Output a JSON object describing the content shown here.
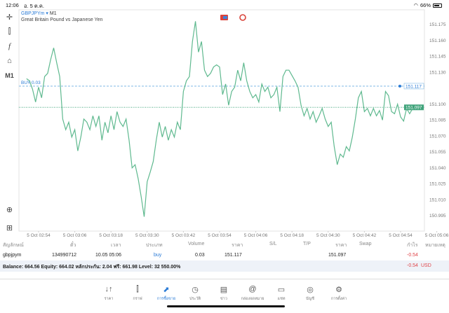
{
  "status": {
    "time": "12:06",
    "date": "อ. 5 ต.ค.",
    "battery": "66%",
    "wifi_icon": "wifi-icon",
    "battery_icon": "battery-icon"
  },
  "toolbar": {
    "timeframe": "M1",
    "icons": [
      "crosshair-icon",
      "candlestick-icon",
      "function-icon",
      "objects-icon"
    ]
  },
  "header": {
    "symbol": "GBPJPYm",
    "timeframe": "M1",
    "description": "Great Britain Pound vs Japanese Yen",
    "separator": "▾"
  },
  "chart_data": {
    "type": "line",
    "ylim": [
      150.985,
      151.19
    ],
    "yticks": [
      "151.175",
      "151.160",
      "151.145",
      "151.130",
      "151.100",
      "151.085",
      "151.070",
      "151.055",
      "151.040",
      "151.025",
      "151.010",
      "150.995"
    ],
    "xticks": [
      "5 Oct 02:54",
      "5 Oct 03:06",
      "5 Oct 03:18",
      "5 Oct 03:30",
      "5 Oct 03:42",
      "5 Oct 03:54",
      "5 Oct 04:06",
      "5 Oct 04:18",
      "5 Oct 04:30",
      "5 Oct 04:42",
      "5 Oct 04:54",
      "5 Oct 05:06"
    ],
    "line_color": "#5fb98f",
    "buy_line": {
      "label": "BUY 0.03",
      "price": "151.117",
      "color": "#7fb8e6"
    },
    "bid_line": {
      "price": "151.097",
      "color": "#3fa37a"
    },
    "x": [
      "02:50",
      "02:51",
      "02:52",
      "02:53",
      "02:54",
      "02:55",
      "02:56",
      "02:57",
      "02:58",
      "02:59",
      "03:00",
      "03:01",
      "03:02",
      "03:03",
      "03:04",
      "03:05",
      "03:06",
      "03:07",
      "03:08",
      "03:09",
      "03:10",
      "03:11",
      "03:12",
      "03:13",
      "03:14",
      "03:15",
      "03:16",
      "03:17",
      "03:18",
      "03:19",
      "03:20",
      "03:21",
      "03:22",
      "03:23",
      "03:24",
      "03:25",
      "03:26",
      "03:27",
      "03:28",
      "03:29",
      "03:30",
      "03:31",
      "03:32",
      "03:33",
      "03:34",
      "03:35",
      "03:36",
      "03:37",
      "03:38",
      "03:39",
      "03:40",
      "03:41",
      "03:42",
      "03:43",
      "03:44",
      "03:45",
      "03:46",
      "03:47",
      "03:48",
      "03:49",
      "03:50",
      "03:51",
      "03:52",
      "03:53",
      "03:54",
      "03:55",
      "03:56",
      "03:57",
      "03:58",
      "03:59",
      "04:00",
      "04:01",
      "04:02",
      "04:03",
      "04:04",
      "04:05",
      "04:06",
      "04:07",
      "04:08",
      "04:09",
      "04:10",
      "04:11",
      "04:12",
      "04:13",
      "04:14",
      "04:15",
      "04:16",
      "04:17",
      "04:18",
      "04:19",
      "04:20",
      "04:21",
      "04:22",
      "04:23",
      "04:24",
      "04:25",
      "04:26",
      "04:27",
      "04:28",
      "04:29",
      "04:30",
      "04:31",
      "04:32",
      "04:33",
      "04:34",
      "04:35",
      "04:36",
      "04:37",
      "04:38",
      "04:39",
      "04:40",
      "04:41",
      "04:42",
      "04:43",
      "04:44",
      "04:45",
      "04:46",
      "04:47",
      "04:48",
      "04:49",
      "04:50",
      "04:51",
      "04:52",
      "04:53",
      "04:54",
      "04:55",
      "04:56",
      "04:57",
      "04:58",
      "04:59"
    ],
    "y": [
      151.124,
      151.122,
      151.114,
      151.102,
      151.116,
      151.106,
      151.126,
      151.129,
      151.142,
      151.153,
      151.139,
      151.126,
      151.086,
      151.076,
      151.083,
      151.069,
      151.076,
      151.056,
      151.069,
      151.086,
      151.083,
      151.076,
      151.089,
      151.079,
      151.089,
      151.066,
      151.083,
      151.073,
      151.089,
      151.076,
      151.093,
      151.083,
      151.079,
      151.086,
      151.066,
      151.04,
      151.043,
      151.03,
      151.013,
      150.994,
      151.027,
      151.036,
      151.046,
      151.066,
      151.083,
      151.069,
      151.079,
      151.066,
      151.076,
      151.069,
      151.083,
      151.076,
      151.112,
      151.122,
      151.126,
      151.159,
      151.178,
      151.149,
      151.159,
      151.132,
      151.126,
      151.129,
      151.135,
      151.137,
      151.135,
      151.109,
      151.119,
      151.099,
      151.112,
      151.116,
      151.132,
      151.122,
      151.139,
      151.122,
      151.112,
      151.106,
      151.109,
      151.102,
      151.119,
      151.112,
      151.116,
      151.106,
      151.109,
      151.116,
      151.093,
      151.126,
      151.132,
      151.132,
      151.127,
      151.122,
      151.116,
      151.099,
      151.089,
      151.096,
      151.086,
      151.093,
      151.083,
      151.089,
      151.096,
      151.086,
      151.079,
      151.083,
      151.06,
      151.043,
      151.053,
      151.05,
      151.06,
      151.056,
      151.069,
      151.086,
      151.106,
      151.112,
      151.093,
      151.096,
      151.089,
      151.096,
      151.089,
      151.094,
      151.085,
      151.112,
      151.108,
      151.093,
      151.091,
      151.1,
      151.088,
      151.084,
      151.096,
      151.091,
      151.096,
      151.097
    ]
  },
  "table": {
    "headers": [
      "สัญลักษณ์",
      "ตั๋ว",
      "เวลา",
      "ประเภท",
      "Volume",
      "ราคา",
      "S/L",
      "T/P",
      "ราคา",
      "Swap",
      "กำไร",
      "หมายเหตุ"
    ],
    "row": {
      "symbol": "gbpjpym",
      "ticket": "134990712",
      "time": "10.05 05:06",
      "type": "buy",
      "volume": "0.03",
      "open_price": "151.117",
      "current_price": "151.097",
      "profit": "-0.54"
    },
    "summary": "Balance: 664.56 Equity: 664.02 หลักประกัน: 2.04 ฟรี: 661.98 Level: 32 550.00%",
    "total_profit": "-0.54",
    "currency": "USD"
  },
  "tabs": [
    {
      "label": "ราคา",
      "icon": "↓↑"
    },
    {
      "label": "กราฟ",
      "icon": "⫿"
    },
    {
      "label": "การซื้อขาย",
      "icon": "⬈",
      "active": true
    },
    {
      "label": "ประวัติ",
      "icon": "◷"
    },
    {
      "label": "ข่าว",
      "icon": "▤"
    },
    {
      "label": "กล่องจดหมาย",
      "icon": "@"
    },
    {
      "label": "แชท",
      "icon": "▭"
    },
    {
      "label": "บัญชี",
      "icon": "◎"
    },
    {
      "label": "การตั้งค่า",
      "icon": "⚙"
    }
  ]
}
